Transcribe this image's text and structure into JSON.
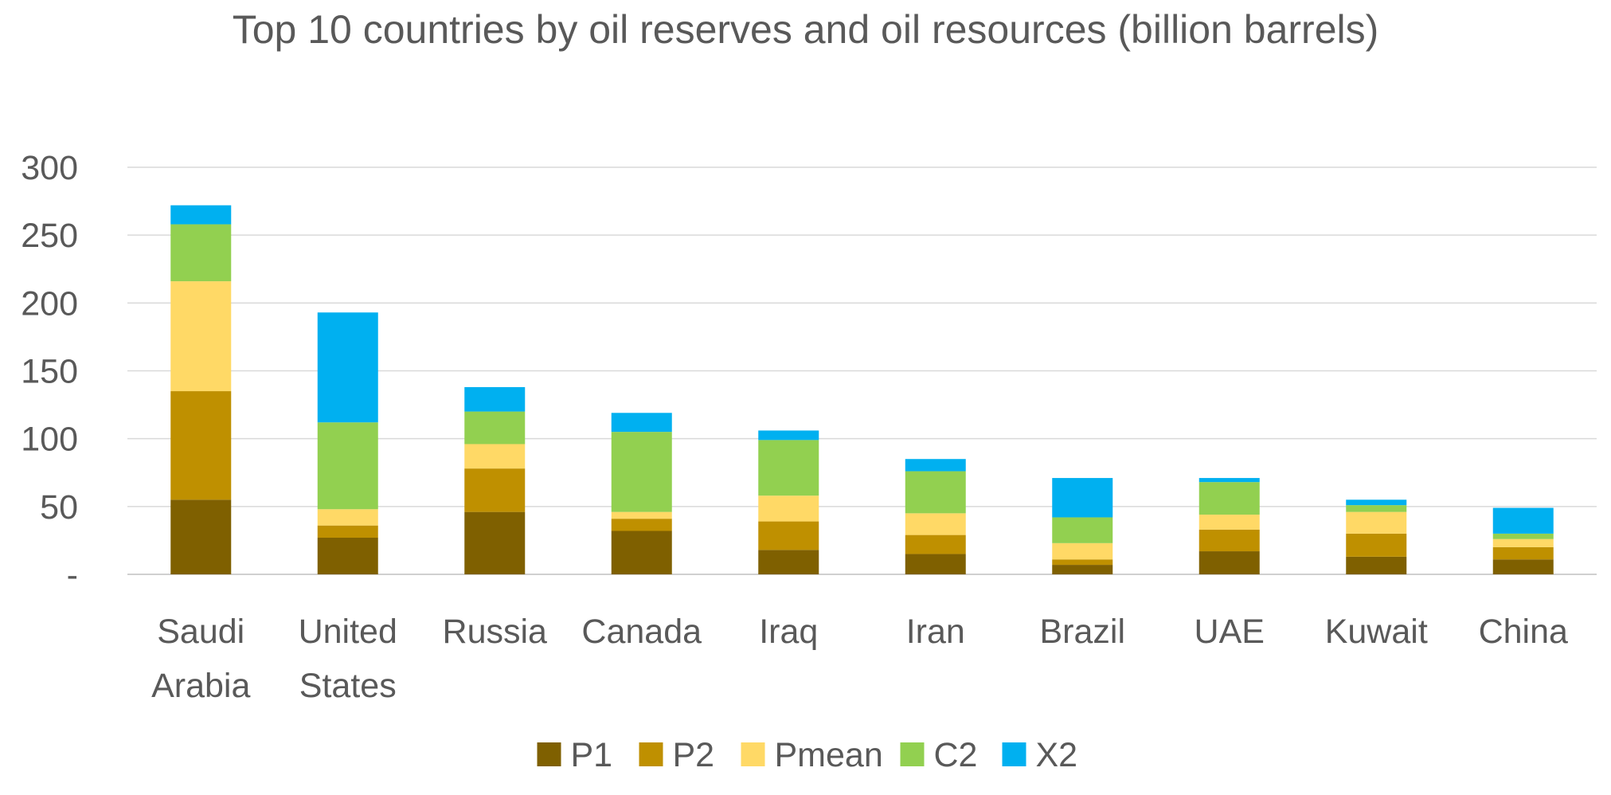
{
  "chart_data": {
    "type": "bar",
    "stacked": true,
    "title": "Top 10 countries by oil reserves  and oil resources  (billion barrels)",
    "xlabel": "",
    "ylabel": "",
    "ylim": [
      0,
      300
    ],
    "yticks": [
      0,
      50,
      100,
      150,
      200,
      250,
      300
    ],
    "ytick_labels": [
      "-",
      "50",
      "100",
      "150",
      "200",
      "250",
      "300"
    ],
    "grid": true,
    "legend_position": "bottom",
    "categories": [
      [
        "Saudi",
        "Arabia"
      ],
      [
        "United",
        "States"
      ],
      [
        "Russia"
      ],
      [
        "Canada"
      ],
      [
        "Iraq"
      ],
      [
        "Iran"
      ],
      [
        "Brazil"
      ],
      [
        "UAE"
      ],
      [
        "Kuwait"
      ],
      [
        "China"
      ]
    ],
    "series": [
      {
        "name": "P1",
        "color": "#7f6000",
        "values": [
          55,
          27,
          46,
          32,
          18,
          15,
          7,
          17,
          13,
          11
        ]
      },
      {
        "name": "P2",
        "color": "#bf9000",
        "values": [
          80,
          9,
          32,
          9,
          21,
          14,
          4,
          16,
          17,
          9
        ]
      },
      {
        "name": "Pmean",
        "color": "#ffd966",
        "values": [
          81,
          12,
          18,
          5,
          19,
          16,
          12,
          11,
          16,
          6
        ]
      },
      {
        "name": "C2",
        "color": "#92d050",
        "values": [
          42,
          64,
          24,
          59,
          41,
          31,
          19,
          24,
          5,
          4
        ]
      },
      {
        "name": "X2",
        "color": "#00b0f0",
        "values": [
          14,
          81,
          18,
          14,
          7,
          9,
          29,
          3,
          4,
          19
        ]
      }
    ]
  }
}
